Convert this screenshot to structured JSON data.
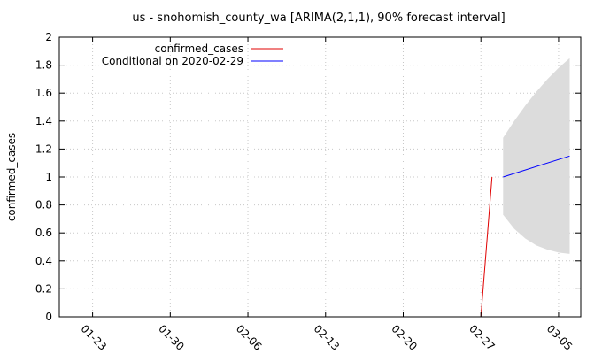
{
  "chart_data": {
    "type": "line",
    "title": "us - snohomish_county_wa [ARIMA(2,1,1), 90% forecast interval]",
    "ylabel": "confirmed_cases",
    "ylim": [
      0,
      2
    ],
    "yticks": [
      "0",
      "0.2",
      "0.4",
      "0.6",
      "0.8",
      "1",
      "1.2",
      "1.4",
      "1.6",
      "1.8",
      "2"
    ],
    "ytick_values": [
      0,
      0.2,
      0.4,
      0.6,
      0.8,
      1,
      1.2,
      1.4,
      1.6,
      1.8,
      2
    ],
    "xlim": [
      "2020-01-20",
      "2020-03-07"
    ],
    "xticks": [
      "01-23",
      "01-30",
      "02-06",
      "02-13",
      "02-20",
      "02-27",
      "03-05"
    ],
    "xtick_dates": [
      "2020-01-23",
      "2020-01-30",
      "2020-02-06",
      "2020-02-13",
      "2020-02-20",
      "2020-02-27",
      "2020-03-05"
    ],
    "grid": true,
    "legend_position": "top-left",
    "series": [
      {
        "name": "confirmed_cases",
        "color": "#e00000",
        "points": [
          {
            "x": "2020-02-27",
            "y": 0
          },
          {
            "x": "2020-02-28",
            "y": 1
          }
        ]
      },
      {
        "name": "Conditional on 2020-02-29",
        "color": "#0000ff",
        "points": [
          {
            "x": "2020-02-29",
            "y": 1
          },
          {
            "x": "2020-03-06",
            "y": 1.15
          }
        ]
      }
    ],
    "forecast_interval": {
      "color": "#dcdcdc",
      "points": [
        {
          "x": "2020-02-29",
          "lower": 0.73,
          "upper": 1.28
        },
        {
          "x": "2020-03-01",
          "lower": 0.63,
          "upper": 1.4
        },
        {
          "x": "2020-03-02",
          "lower": 0.56,
          "upper": 1.51
        },
        {
          "x": "2020-03-03",
          "lower": 0.51,
          "upper": 1.61
        },
        {
          "x": "2020-03-04",
          "lower": 0.48,
          "upper": 1.7
        },
        {
          "x": "2020-03-05",
          "lower": 0.46,
          "upper": 1.78
        },
        {
          "x": "2020-03-06",
          "lower": 0.45,
          "upper": 1.85
        }
      ]
    }
  }
}
